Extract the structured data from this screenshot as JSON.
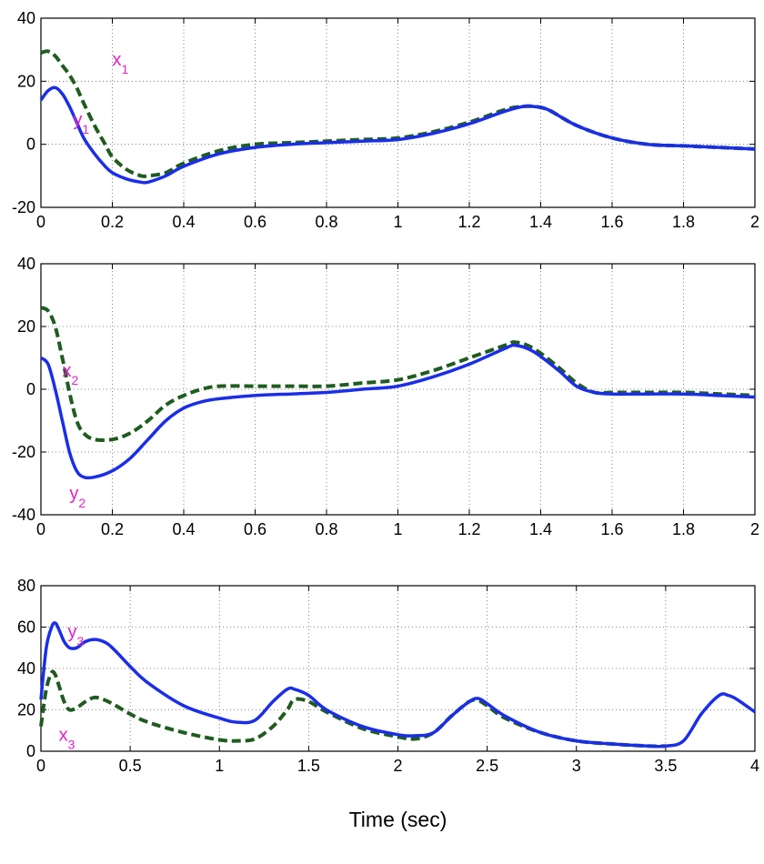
{
  "chart_data": [
    {
      "type": "line",
      "xlim": [
        0,
        2
      ],
      "ylim": [
        -20,
        40
      ],
      "xticks": [
        0,
        0.2,
        0.4,
        0.6,
        0.8,
        1,
        1.2,
        1.4,
        1.6,
        1.8,
        2
      ],
      "xtick_labels": [
        "0",
        "0.2",
        "0.4",
        "0.6",
        "0.8",
        "1",
        "1.2",
        "1.4",
        "1.6",
        "1.8",
        "2"
      ],
      "yticks": [
        -20,
        0,
        20,
        40
      ],
      "ytick_labels": [
        "-20",
        "0",
        "20",
        "40"
      ],
      "grid": true,
      "xlabel": "",
      "ylabel": "",
      "series": [
        {
          "name": "x1",
          "label": "x",
          "label_sub": "1",
          "color": "#1f5c1f",
          "dash": true,
          "x": [
            0,
            0.02,
            0.04,
            0.06,
            0.08,
            0.1,
            0.12,
            0.15,
            0.18,
            0.2,
            0.24,
            0.28,
            0.3,
            0.35,
            0.4,
            0.5,
            0.6,
            0.7,
            0.8,
            0.9,
            1.0,
            1.1,
            1.2,
            1.3,
            1.35,
            1.38,
            1.42,
            1.5,
            1.6,
            1.7,
            1.8,
            1.9,
            2.0
          ],
          "y": [
            29,
            29.5,
            28,
            25,
            22,
            18,
            13,
            6,
            0,
            -4,
            -8,
            -10,
            -10,
            -9,
            -6,
            -2,
            0,
            0.5,
            1,
            1.5,
            2,
            4,
            7,
            11,
            12,
            12,
            11,
            6,
            2,
            0,
            -0.5,
            -1,
            -1.5
          ]
        },
        {
          "name": "y1",
          "label": "y",
          "label_sub": "1",
          "color": "#1a2ee8",
          "dash": false,
          "x": [
            0,
            0.02,
            0.04,
            0.06,
            0.08,
            0.1,
            0.12,
            0.15,
            0.18,
            0.2,
            0.24,
            0.28,
            0.3,
            0.35,
            0.4,
            0.5,
            0.6,
            0.7,
            0.8,
            0.9,
            1.0,
            1.1,
            1.2,
            1.3,
            1.35,
            1.38,
            1.42,
            1.5,
            1.6,
            1.7,
            1.8,
            1.9,
            2.0
          ],
          "y": [
            14,
            17,
            18,
            16,
            12,
            7,
            2,
            -3,
            -7,
            -9,
            -11,
            -12,
            -12,
            -10,
            -7,
            -3,
            -1,
            0,
            0.5,
            1,
            1.5,
            3.5,
            6.5,
            10.5,
            12,
            12,
            11,
            6,
            2,
            0,
            -0.5,
            -1,
            -1.5
          ]
        }
      ],
      "annotations": [
        {
          "text": "x",
          "sub": "1",
          "x": 0.2,
          "y": 25,
          "color": "#e020c8"
        },
        {
          "text": "y",
          "sub": "1",
          "x": 0.09,
          "y": 6,
          "color": "#e020c8"
        }
      ]
    },
    {
      "type": "line",
      "xlim": [
        0,
        2
      ],
      "ylim": [
        -40,
        40
      ],
      "xticks": [
        0,
        0.2,
        0.4,
        0.6,
        0.8,
        1,
        1.2,
        1.4,
        1.6,
        1.8,
        2
      ],
      "xtick_labels": [
        "0",
        "0.2",
        "0.4",
        "0.6",
        "0.8",
        "1",
        "1.2",
        "1.4",
        "1.6",
        "1.8",
        "2"
      ],
      "yticks": [
        -40,
        -20,
        0,
        20,
        40
      ],
      "ytick_labels": [
        "-40",
        "-20",
        "0",
        "20",
        "40"
      ],
      "grid": true,
      "xlabel": "",
      "ylabel": "",
      "series": [
        {
          "name": "x2",
          "label": "x",
          "label_sub": "2",
          "color": "#1f5c1f",
          "dash": true,
          "x": [
            0,
            0.02,
            0.04,
            0.06,
            0.08,
            0.1,
            0.12,
            0.15,
            0.2,
            0.25,
            0.3,
            0.35,
            0.4,
            0.45,
            0.5,
            0.6,
            0.7,
            0.8,
            0.9,
            1.0,
            1.1,
            1.2,
            1.3,
            1.33,
            1.38,
            1.45,
            1.5,
            1.55,
            1.6,
            1.7,
            1.8,
            1.9,
            2.0
          ],
          "y": [
            26,
            25,
            20,
            10,
            -1,
            -10,
            -14,
            -16,
            -16,
            -14,
            -10,
            -5,
            -2,
            0,
            1,
            1,
            1,
            1,
            2,
            3,
            6,
            10,
            14,
            15,
            13,
            7,
            2,
            -1,
            -1,
            -1,
            -1,
            -1.5,
            -2
          ]
        },
        {
          "name": "y2",
          "label": "y",
          "label_sub": "2",
          "color": "#1a2ee8",
          "dash": false,
          "x": [
            0,
            0.02,
            0.04,
            0.06,
            0.08,
            0.1,
            0.12,
            0.15,
            0.2,
            0.25,
            0.3,
            0.35,
            0.4,
            0.45,
            0.5,
            0.6,
            0.7,
            0.8,
            0.9,
            1.0,
            1.1,
            1.2,
            1.3,
            1.33,
            1.38,
            1.45,
            1.5,
            1.55,
            1.6,
            1.7,
            1.8,
            1.9,
            2.0
          ],
          "y": [
            10,
            8,
            0,
            -10,
            -20,
            -26,
            -28,
            -28,
            -26,
            -22,
            -16,
            -10,
            -6,
            -4,
            -3,
            -2,
            -1.5,
            -1,
            0,
            1,
            4,
            8,
            13,
            14,
            12,
            6,
            1,
            -1,
            -1.5,
            -1.5,
            -1.5,
            -2,
            -2.5
          ]
        }
      ],
      "annotations": [
        {
          "text": "x",
          "sub": "2",
          "x": 0.06,
          "y": 4,
          "color": "#e020c8"
        },
        {
          "text": "y",
          "sub": "2",
          "x": 0.08,
          "y": -35,
          "color": "#e020c8"
        }
      ]
    },
    {
      "type": "line",
      "xlim": [
        0,
        4
      ],
      "ylim": [
        0,
        80
      ],
      "xticks": [
        0,
        0.5,
        1,
        1.5,
        2,
        2.5,
        3,
        3.5,
        4
      ],
      "xtick_labels": [
        "0",
        "0.5",
        "1",
        "1.5",
        "2",
        "2.5",
        "3",
        "3.5",
        "4"
      ],
      "yticks": [
        0,
        20,
        40,
        60,
        80
      ],
      "ytick_labels": [
        "0",
        "20",
        "40",
        "60",
        "80"
      ],
      "grid": true,
      "xlabel": "Time (sec)",
      "ylabel": "",
      "series": [
        {
          "name": "x3",
          "label": "x",
          "label_sub": "3",
          "color": "#1f5c1f",
          "dash": true,
          "x": [
            0,
            0.03,
            0.06,
            0.08,
            0.1,
            0.13,
            0.16,
            0.2,
            0.25,
            0.3,
            0.35,
            0.4,
            0.5,
            0.6,
            0.8,
            1.0,
            1.1,
            1.2,
            1.3,
            1.38,
            1.42,
            1.5,
            1.6,
            1.8,
            2.0,
            2.1,
            2.2,
            2.3,
            2.4,
            2.45,
            2.5,
            2.6,
            2.8,
            3.0,
            3.2,
            3.4,
            3.5
          ],
          "y": [
            12,
            30,
            38,
            37,
            32,
            24,
            20,
            21,
            24,
            26,
            25,
            23,
            18,
            14,
            9,
            5.5,
            5,
            6,
            12,
            20,
            25,
            24,
            19,
            11,
            7,
            6,
            9,
            17,
            24,
            24.5,
            22,
            16,
            9,
            5,
            3.5,
            2.5,
            2.5
          ]
        },
        {
          "name": "y3",
          "label": "y",
          "label_sub": "3",
          "color": "#1a2ee8",
          "dash": false,
          "x": [
            0,
            0.03,
            0.06,
            0.08,
            0.1,
            0.13,
            0.16,
            0.2,
            0.25,
            0.3,
            0.35,
            0.4,
            0.5,
            0.6,
            0.8,
            1.0,
            1.1,
            1.2,
            1.3,
            1.38,
            1.42,
            1.5,
            1.6,
            1.8,
            2.0,
            2.1,
            2.2,
            2.3,
            2.4,
            2.45,
            2.5,
            2.6,
            2.8,
            3.0,
            3.2,
            3.4,
            3.5,
            3.6,
            3.7,
            3.8,
            3.85,
            3.9,
            4.0
          ],
          "y": [
            25,
            50,
            60,
            62,
            59,
            53,
            50,
            50,
            53,
            54,
            53,
            50,
            41,
            33,
            22,
            16,
            14,
            15,
            24,
            30,
            30,
            27,
            20,
            12,
            8,
            7.5,
            9,
            17,
            24,
            25.5,
            23,
            17,
            9,
            5,
            3.5,
            2.5,
            2.5,
            5,
            18,
            27,
            27,
            25,
            19
          ]
        }
      ],
      "annotations": [
        {
          "text": "y",
          "sub": "3",
          "x": 0.15,
          "y": 55,
          "color": "#e020c8"
        },
        {
          "text": "x",
          "sub": "3",
          "x": 0.1,
          "y": 5,
          "color": "#e020c8"
        }
      ]
    }
  ]
}
